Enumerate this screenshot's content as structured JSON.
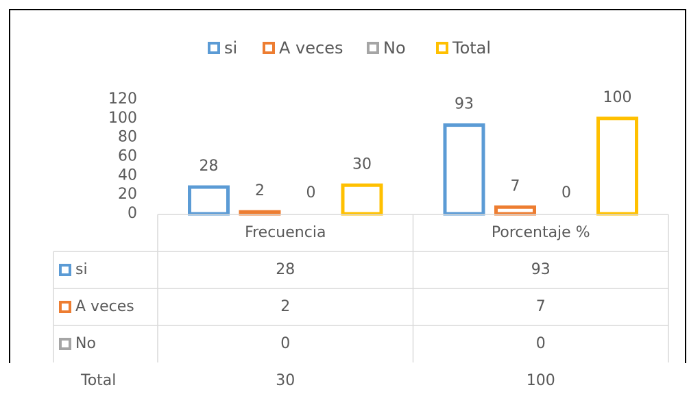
{
  "chart_data": {
    "type": "bar",
    "categories": [
      "Frecuencia",
      "Porcentaje %"
    ],
    "series": [
      {
        "name": "si",
        "color": "#5b9bd5",
        "values": [
          28,
          93
        ]
      },
      {
        "name": "A veces",
        "color": "#ed7d31",
        "values": [
          2,
          7
        ]
      },
      {
        "name": "No",
        "color": "#a5a5a5",
        "values": [
          0,
          0
        ]
      },
      {
        "name": "Total",
        "color": "#ffc000",
        "values": [
          30,
          100
        ]
      }
    ],
    "ylim": [
      0,
      120
    ],
    "yticks": [
      0,
      20,
      40,
      60,
      80,
      100,
      120
    ],
    "legend": "top",
    "data_labels": true,
    "data_table": true
  }
}
